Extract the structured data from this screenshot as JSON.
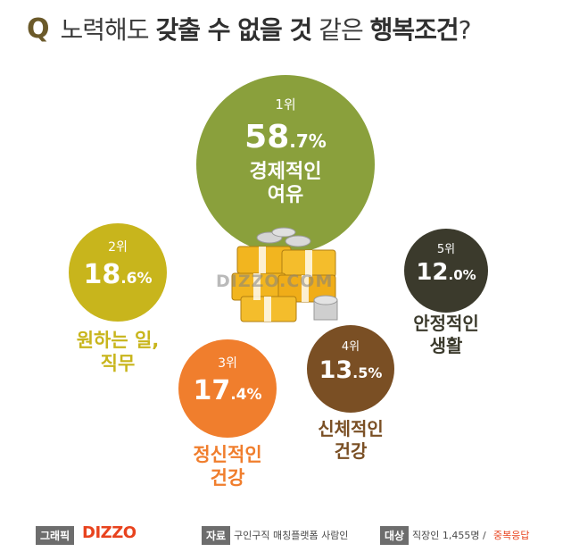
{
  "header": {
    "q_mark": "Q",
    "question_normal_1": "노력해도",
    "question_bold_1": "갖출 수 없을 것",
    "question_normal_2": "같은",
    "question_bold_2": "행복조건",
    "question_end": "?"
  },
  "chart_data": {
    "type": "bubble",
    "items": [
      {
        "rank": "1위",
        "pct_int": "58",
        "pct_dec": ".7%",
        "value": 58.7,
        "label_lines": [
          "경제적인",
          "여유"
        ],
        "color": "#8aa03c"
      },
      {
        "rank": "2위",
        "pct_int": "18",
        "pct_dec": ".6%",
        "value": 18.6,
        "label_lines": [
          "원하는 일,",
          "직무"
        ],
        "color": "#c8b51c"
      },
      {
        "rank": "3위",
        "pct_int": "17",
        "pct_dec": ".4%",
        "value": 17.4,
        "label_lines": [
          "정신적인",
          "건강"
        ],
        "color": "#f07e2d"
      },
      {
        "rank": "4위",
        "pct_int": "13",
        "pct_dec": ".5%",
        "value": 13.5,
        "label_lines": [
          "신체적인",
          "건강"
        ],
        "color": "#7a4f24"
      },
      {
        "rank": "5위",
        "pct_int": "12",
        "pct_dec": ".0%",
        "value": 12.0,
        "label_lines": [
          "안정적인",
          "생활"
        ],
        "color": "#3b3a2c"
      }
    ]
  },
  "watermark": "DIZZO.COM",
  "footer": {
    "graphic_tag": "그래픽",
    "brand": "DIZZO",
    "source_tag": "자료",
    "source_text": "구인구직 매칭플랫폼 사람인",
    "target_tag": "대상",
    "target_text": "직장인 1,455명 /",
    "target_note": "중복응답"
  }
}
